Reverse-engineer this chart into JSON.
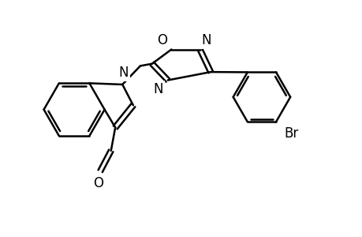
{
  "bg_color": "#ffffff",
  "line_color": "#000000",
  "line_width": 1.8,
  "font_size": 12,
  "figsize": [
    4.6,
    3.0
  ],
  "dpi": 100,
  "xlim": [
    0,
    10
  ],
  "ylim": [
    0,
    6.5
  ]
}
